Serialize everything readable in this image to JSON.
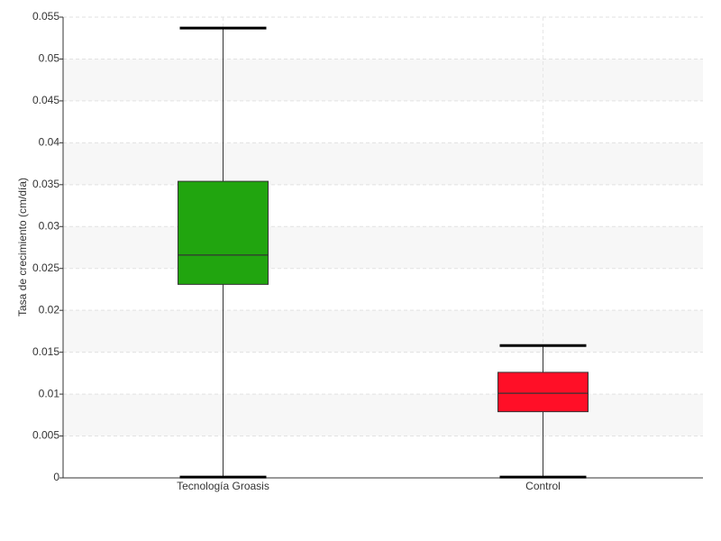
{
  "chart_data": {
    "type": "box",
    "y_label": "Tasa de crecimiento (cm/día)",
    "categories": [
      "Tecnología Groasis",
      "Control"
    ],
    "boxes": [
      {
        "color": "#21a50f",
        "min": 0.0001,
        "q1": 0.0231,
        "median": 0.0266,
        "q3": 0.0354,
        "max": 0.0537
      },
      {
        "color": "#ff0f27",
        "min": 0.0001,
        "q1": 0.0079,
        "median": 0.0101,
        "q3": 0.0126,
        "max": 0.0158
      }
    ],
    "ylim": [
      0,
      0.055
    ],
    "yticks": [
      0,
      0.005,
      0.01,
      0.015,
      0.02,
      0.025,
      0.03,
      0.035,
      0.04,
      0.045,
      0.05,
      0.055
    ],
    "grid": true
  }
}
